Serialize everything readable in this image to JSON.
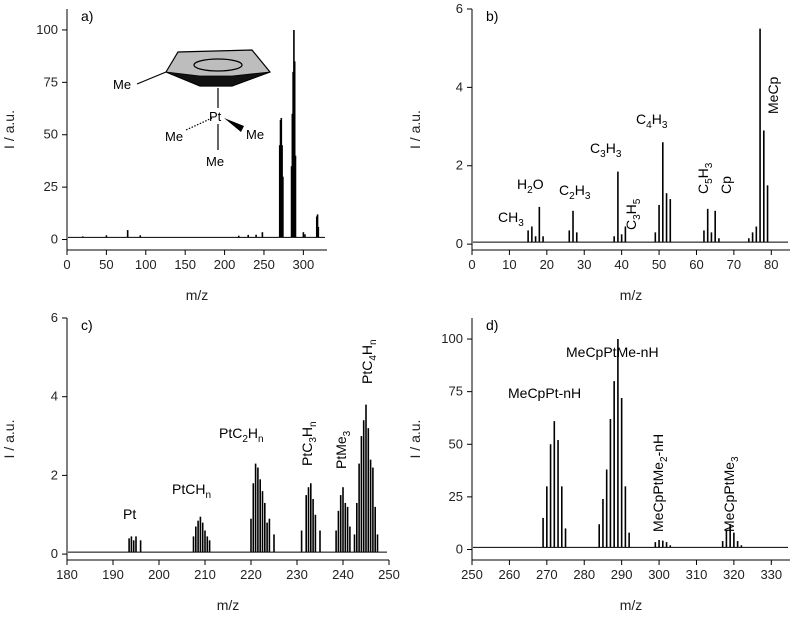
{
  "chart_data": [
    {
      "panel": "a)",
      "type": "line",
      "xlabel": "m/z",
      "ylabel": "I / a.u.",
      "xlim": [
        0,
        330
      ],
      "ylim": [
        -5,
        110
      ],
      "xticks": [
        0,
        50,
        100,
        150,
        200,
        250,
        300
      ],
      "yticks": [
        0,
        25,
        50,
        75,
        100
      ],
      "baseline": 1,
      "peaks": [
        [
          10,
          1
        ],
        [
          20,
          1.5
        ],
        [
          38,
          1.2
        ],
        [
          50,
          2
        ],
        [
          77,
          4.5
        ],
        [
          93,
          2
        ],
        [
          115,
          1
        ],
        [
          140,
          1
        ],
        [
          205,
          1.2
        ],
        [
          218,
          1.8
        ],
        [
          230,
          2.2
        ],
        [
          240,
          2.3
        ],
        [
          248,
          3.5
        ],
        [
          270,
          45
        ],
        [
          271,
          57
        ],
        [
          272,
          58
        ],
        [
          273,
          45
        ],
        [
          274,
          30
        ],
        [
          285,
          35
        ],
        [
          286,
          60
        ],
        [
          287,
          80
        ],
        [
          288,
          100
        ],
        [
          289,
          85
        ],
        [
          290,
          40
        ],
        [
          300,
          3.5
        ],
        [
          302,
          2.5
        ],
        [
          317,
          11
        ],
        [
          318,
          12
        ],
        [
          319,
          6
        ]
      ],
      "molecule_labels": [
        "Me",
        "Pt",
        "Me",
        "Me",
        "Me"
      ]
    },
    {
      "panel": "b)",
      "type": "line",
      "xlabel": "m/z",
      "ylabel": "I / a.u.",
      "xlim": [
        0,
        85
      ],
      "ylim": [
        -0.15,
        6
      ],
      "xticks": [
        0,
        10,
        20,
        30,
        40,
        50,
        60,
        70,
        80
      ],
      "yticks": [
        0,
        2,
        4,
        6
      ],
      "baseline": 0.05,
      "peaks": [
        [
          15,
          0.35
        ],
        [
          16,
          0.45
        ],
        [
          17,
          0.2
        ],
        [
          18,
          0.95
        ],
        [
          19,
          0.2
        ],
        [
          26,
          0.35
        ],
        [
          27,
          0.85
        ],
        [
          28,
          0.3
        ],
        [
          38,
          0.2
        ],
        [
          39,
          1.85
        ],
        [
          40,
          0.25
        ],
        [
          41,
          0.45
        ],
        [
          49,
          0.3
        ],
        [
          50,
          1.0
        ],
        [
          51,
          2.6
        ],
        [
          52,
          1.3
        ],
        [
          53,
          1.15
        ],
        [
          62,
          0.35
        ],
        [
          63,
          0.9
        ],
        [
          64,
          0.3
        ],
        [
          65,
          0.85
        ],
        [
          66,
          0.15
        ],
        [
          74,
          0.15
        ],
        [
          75,
          0.3
        ],
        [
          76,
          0.45
        ],
        [
          77,
          5.5
        ],
        [
          78,
          2.9
        ],
        [
          79,
          1.5
        ]
      ],
      "annotations": [
        {
          "base": "CH",
          "sub": "3",
          "sup": ""
        },
        {
          "base": "H",
          "sub": "2",
          "sup": "O"
        },
        {
          "base": "C",
          "sub": "2",
          "sup": "H",
          "sub2": "3"
        },
        {
          "base": "C",
          "sub": "3",
          "sup": "H",
          "sub2": "3"
        },
        {
          "base": "C",
          "sub": "3",
          "sup": "H",
          "sub2": "5"
        },
        {
          "base": "C",
          "sub": "4",
          "sup": "H",
          "sub2": "3"
        },
        {
          "base": "C",
          "sub": "5",
          "sup": "H",
          "sub2": "3"
        },
        {
          "base": "Cp",
          "sub": "",
          "sup": ""
        },
        {
          "base": "MeCp",
          "sub": "",
          "sup": ""
        }
      ]
    },
    {
      "panel": "c)",
      "type": "line",
      "xlabel": "m/z",
      "ylabel": "I / a.u.",
      "xlim": [
        180,
        250
      ],
      "ylim": [
        -0.15,
        6
      ],
      "xticks": [
        180,
        190,
        200,
        210,
        220,
        230,
        240,
        250
      ],
      "yticks": [
        0,
        2,
        4,
        6
      ],
      "baseline": 0.05,
      "peaks": [
        [
          193.5,
          0.4
        ],
        [
          194,
          0.45
        ],
        [
          194.5,
          0.35
        ],
        [
          195,
          0.45
        ],
        [
          196,
          0.35
        ],
        [
          207.5,
          0.45
        ],
        [
          208,
          0.7
        ],
        [
          208.5,
          0.85
        ],
        [
          209,
          0.95
        ],
        [
          209.5,
          0.8
        ],
        [
          210,
          0.6
        ],
        [
          210.5,
          0.45
        ],
        [
          211,
          0.35
        ],
        [
          220,
          0.9
        ],
        [
          220.5,
          1.8
        ],
        [
          221,
          2.3
        ],
        [
          221.5,
          2.2
        ],
        [
          222,
          1.9
        ],
        [
          222.5,
          1.6
        ],
        [
          223,
          1.3
        ],
        [
          223.5,
          0.8
        ],
        [
          224,
          0.9
        ],
        [
          225,
          0.5
        ],
        [
          231,
          0.6
        ],
        [
          232,
          1.5
        ],
        [
          232.5,
          1.7
        ],
        [
          233,
          1.8
        ],
        [
          233.5,
          1.4
        ],
        [
          234,
          1.0
        ],
        [
          235,
          0.6
        ],
        [
          238.5,
          0.6
        ],
        [
          239,
          1.1
        ],
        [
          239.5,
          1.5
        ],
        [
          240,
          1.7
        ],
        [
          240.5,
          1.3
        ],
        [
          241,
          1.2
        ],
        [
          241.5,
          0.7
        ],
        [
          242.5,
          0.5
        ],
        [
          243,
          1.3
        ],
        [
          243.5,
          2.3
        ],
        [
          244,
          3.0
        ],
        [
          244.5,
          3.4
        ],
        [
          245,
          3.8
        ],
        [
          245.5,
          3.2
        ],
        [
          246,
          2.4
        ],
        [
          246.5,
          2.2
        ],
        [
          247,
          1.2
        ],
        [
          247.5,
          0.5
        ]
      ],
      "annotations": [
        {
          "base": "Pt",
          "sub": "",
          "sup": ""
        },
        {
          "base": "PtCH",
          "sub": "n",
          "sup": ""
        },
        {
          "base": "PtC",
          "sub": "2",
          "sup": "H",
          "sub2": "n"
        },
        {
          "base": "PtC",
          "sub": "3",
          "sup": "H",
          "sub2": "n"
        },
        {
          "base": "PtMe",
          "sub": "3",
          "sup": ""
        },
        {
          "base": "PtC",
          "sub": "4",
          "sup": "H",
          "sub2": "n"
        }
      ]
    },
    {
      "panel": "d)",
      "type": "line",
      "xlabel": "m/z",
      "ylabel": "I / a.u.",
      "xlim": [
        250,
        335
      ],
      "ylim": [
        -5,
        110
      ],
      "xticks": [
        250,
        260,
        270,
        280,
        290,
        300,
        310,
        320,
        330
      ],
      "yticks": [
        0,
        25,
        50,
        75,
        100
      ],
      "baseline": 1,
      "peaks": [
        [
          269,
          15
        ],
        [
          270,
          30
        ],
        [
          271,
          50
        ],
        [
          272,
          61
        ],
        [
          273,
          52
        ],
        [
          274,
          30
        ],
        [
          275,
          10
        ],
        [
          284,
          12
        ],
        [
          285,
          24
        ],
        [
          286,
          38
        ],
        [
          287,
          62
        ],
        [
          288,
          80
        ],
        [
          289,
          100
        ],
        [
          290,
          72
        ],
        [
          291,
          30
        ],
        [
          292,
          8
        ],
        [
          299,
          3.5
        ],
        [
          300,
          4.5
        ],
        [
          301,
          4.2
        ],
        [
          302,
          3.5
        ],
        [
          303,
          2
        ],
        [
          317,
          4
        ],
        [
          318,
          9
        ],
        [
          319,
          12
        ],
        [
          320,
          8
        ],
        [
          321,
          4
        ],
        [
          322,
          2
        ]
      ],
      "annotations": [
        {
          "base": "MeCpPt-nH",
          "sub": "",
          "sup": ""
        },
        {
          "base": "MeCpPtMe-nH",
          "sub": "",
          "sup": ""
        },
        {
          "base": "MeCpPtMe",
          "sub": "2",
          "sup": "-nH"
        },
        {
          "base": "MeCpPtMe",
          "sub": "3",
          "sup": ""
        }
      ]
    }
  ]
}
